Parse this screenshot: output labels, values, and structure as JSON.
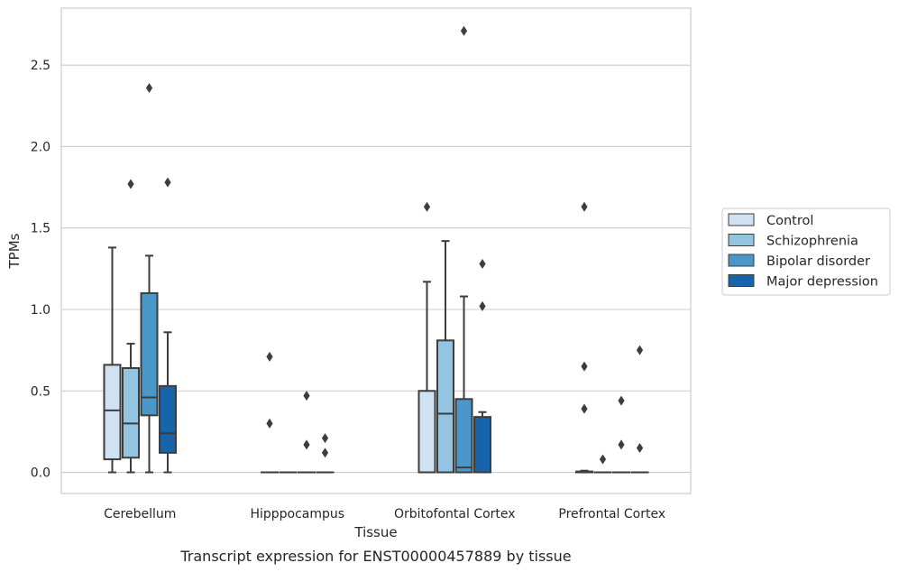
{
  "chart_data": {
    "type": "box",
    "title": "",
    "caption": "Transcript expression for ENST00000457889 by tissue",
    "xlabel": "Tissue",
    "ylabel": "TPMs",
    "ylim": [
      -0.13,
      2.85
    ],
    "yticks": [
      "0.0",
      "0.5",
      "1.0",
      "1.5",
      "2.0",
      "2.5"
    ],
    "ytick_values": [
      0,
      0.5,
      1.0,
      1.5,
      2.0,
      2.5
    ],
    "grid": "horizontal",
    "legend_position": "right",
    "categories": [
      "Cerebellum",
      "Hipppocampus",
      "Orbitofontal Cortex",
      "Prefrontal Cortex"
    ],
    "series": [
      {
        "name": "Control",
        "color": "#d0e1f2",
        "boxes": [
          {
            "whislo": 0.0,
            "q1": 0.08,
            "med": 0.38,
            "q3": 0.66,
            "whishi": 1.38,
            "fliers": []
          },
          {
            "whislo": 0.0,
            "q1": 0.0,
            "med": 0.0,
            "q3": 0.0,
            "whishi": 0.0,
            "fliers": [
              0.71,
              0.3
            ]
          },
          {
            "whislo": 0.0,
            "q1": 0.0,
            "med": 0.0,
            "q3": 0.5,
            "whishi": 1.17,
            "fliers": [
              1.63
            ]
          },
          {
            "whislo": 0.0,
            "q1": 0.0,
            "med": 0.0,
            "q3": 0.005,
            "whishi": 0.01,
            "fliers": [
              1.63,
              0.65,
              0.39
            ]
          }
        ]
      },
      {
        "name": "Schizophrenia",
        "color": "#94c4df",
        "boxes": [
          {
            "whislo": 0.0,
            "q1": 0.09,
            "med": 0.3,
            "q3": 0.64,
            "whishi": 0.79,
            "fliers": [
              1.77
            ]
          },
          {
            "whislo": 0.0,
            "q1": 0.0,
            "med": 0.0,
            "q3": 0.0,
            "whishi": 0.0,
            "fliers": []
          },
          {
            "whislo": 0.0,
            "q1": 0.0,
            "med": 0.36,
            "q3": 0.81,
            "whishi": 1.42,
            "fliers": []
          },
          {
            "whislo": 0.0,
            "q1": 0.0,
            "med": 0.0,
            "q3": 0.0,
            "whishi": 0.0,
            "fliers": [
              0.08
            ]
          }
        ]
      },
      {
        "name": "Bipolar disorder",
        "color": "#4a98c9",
        "boxes": [
          {
            "whislo": 0.0,
            "q1": 0.35,
            "med": 0.46,
            "q3": 1.1,
            "whishi": 1.33,
            "fliers": [
              2.36
            ]
          },
          {
            "whislo": 0.0,
            "q1": 0.0,
            "med": 0.0,
            "q3": 0.0,
            "whishi": 0.0,
            "fliers": [
              0.47,
              0.17
            ]
          },
          {
            "whislo": 0.0,
            "q1": 0.0,
            "med": 0.03,
            "q3": 0.45,
            "whishi": 1.08,
            "fliers": [
              2.71
            ]
          },
          {
            "whislo": 0.0,
            "q1": 0.0,
            "med": 0.0,
            "q3": 0.0,
            "whishi": 0.0,
            "fliers": [
              0.44,
              0.17
            ]
          }
        ]
      },
      {
        "name": "Major depression",
        "color": "#1764ab",
        "boxes": [
          {
            "whislo": 0.0,
            "q1": 0.12,
            "med": 0.24,
            "q3": 0.53,
            "whishi": 0.86,
            "fliers": [
              1.78
            ]
          },
          {
            "whislo": 0.0,
            "q1": 0.0,
            "med": 0.0,
            "q3": 0.0,
            "whishi": 0.0,
            "fliers": [
              0.21,
              0.12
            ]
          },
          {
            "whislo": 0.0,
            "q1": 0.0,
            "med": 0.0,
            "q3": 0.34,
            "whishi": 0.37,
            "fliers": [
              1.28,
              1.02
            ]
          },
          {
            "whislo": 0.0,
            "q1": 0.0,
            "med": 0.0,
            "q3": 0.0,
            "whishi": 0.0,
            "fliers": [
              0.75,
              0.15
            ]
          }
        ]
      }
    ]
  }
}
